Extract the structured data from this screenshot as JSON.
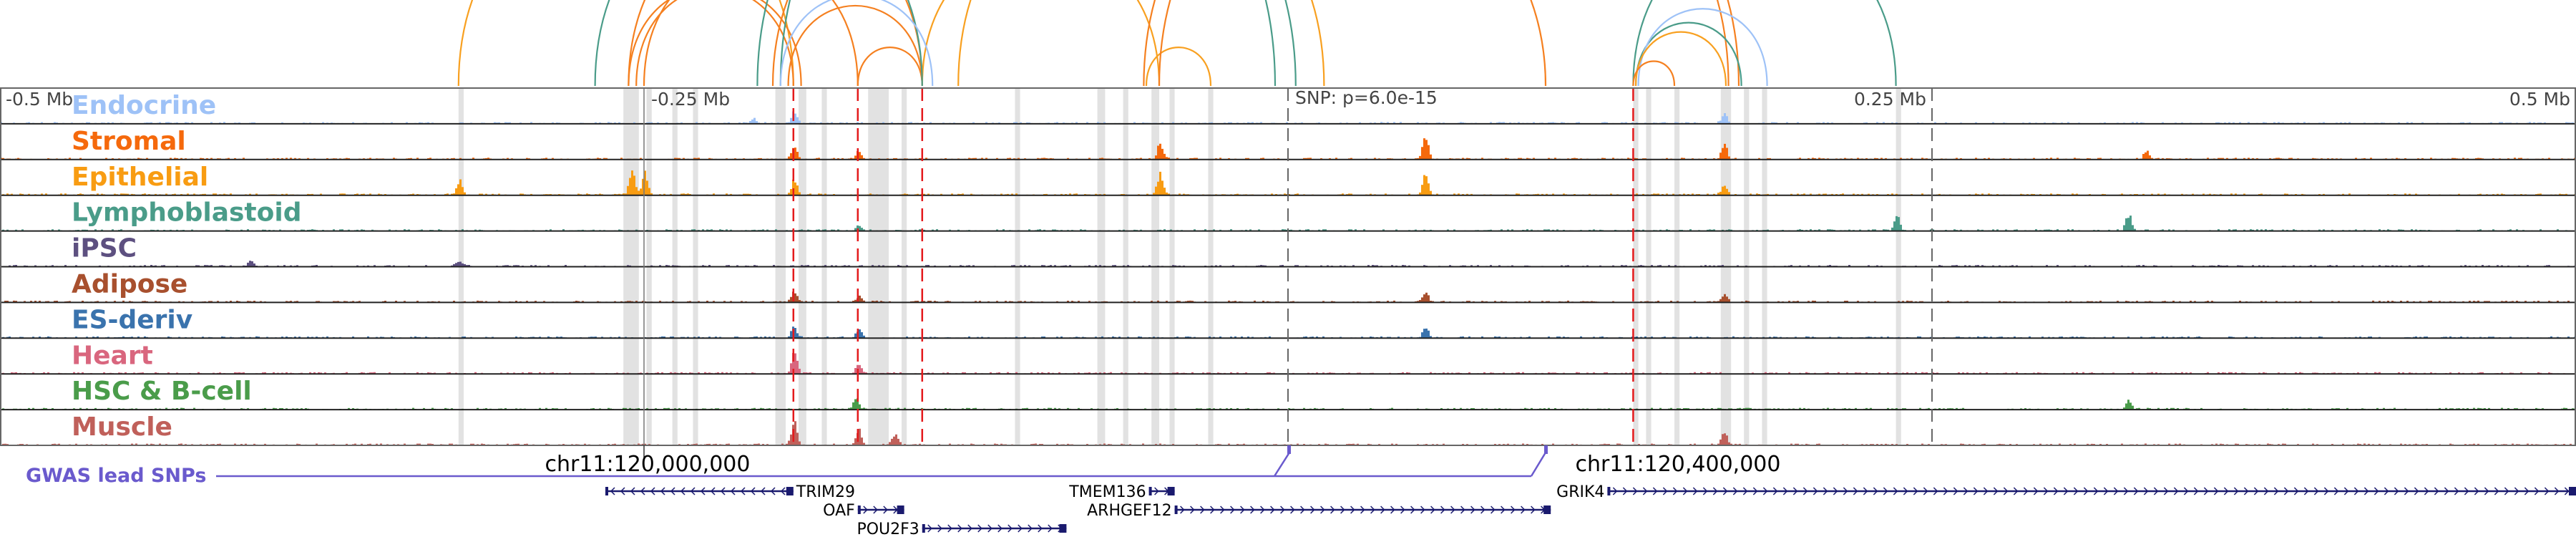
{
  "axis": {
    "ticks": [
      {
        "label": "-0.5 Mb",
        "mb": -0.5
      },
      {
        "label": "-0.25 Mb",
        "mb": -0.25
      },
      {
        "label": "0.25 Mb",
        "mb": 0.25
      },
      {
        "label": "0.5 Mb",
        "mb": 0.5
      }
    ],
    "snp_label": "SNP: p=6.0e-15"
  },
  "tracks": [
    {
      "name": "Endocrine",
      "color": "#9ec2f7",
      "peaks": [
        [
          -0.192,
          0.4
        ],
        [
          -0.208,
          0.2
        ],
        [
          0.169,
          0.35
        ]
      ]
    },
    {
      "name": "Stromal",
      "color": "#f5690c",
      "peaks": [
        [
          -0.192,
          0.5
        ],
        [
          -0.167,
          0.3
        ],
        [
          -0.05,
          0.6
        ],
        [
          0.053,
          0.9
        ],
        [
          0.169,
          0.6
        ],
        [
          0.333,
          0.3
        ]
      ]
    },
    {
      "name": "Epithelial",
      "color": "#f89c12",
      "peaks": [
        [
          -0.255,
          0.9
        ],
        [
          -0.25,
          0.85
        ],
        [
          -0.322,
          0.5
        ],
        [
          -0.192,
          0.6
        ],
        [
          -0.05,
          0.8
        ],
        [
          0.053,
          0.8
        ],
        [
          0.169,
          0.3
        ]
      ]
    },
    {
      "name": "Lymphoblastoid",
      "color": "#4a9c89",
      "peaks": [
        [
          0.236,
          0.5
        ],
        [
          0.326,
          0.6
        ],
        [
          -0.167,
          0.2
        ]
      ]
    },
    {
      "name": "iPSC",
      "color": "#5d5080",
      "peaks": [
        [
          -0.322,
          0.2
        ],
        [
          -0.403,
          0.2
        ]
      ]
    },
    {
      "name": "Adipose",
      "color": "#a8502e",
      "peaks": [
        [
          -0.192,
          0.4
        ],
        [
          -0.167,
          0.2
        ],
        [
          0.053,
          0.4
        ],
        [
          0.169,
          0.3
        ]
      ]
    },
    {
      "name": "ES-deriv",
      "color": "#3a73ad",
      "peaks": [
        [
          -0.192,
          0.4
        ],
        [
          -0.167,
          0.3
        ],
        [
          0.053,
          0.4
        ]
      ]
    },
    {
      "name": "Heart",
      "color": "#d9667e",
      "peaks": [
        [
          -0.192,
          0.8
        ],
        [
          -0.167,
          0.4
        ]
      ]
    },
    {
      "name": "HSC & B-cell",
      "color": "#4a9c4a",
      "peaks": [
        [
          -0.168,
          0.4
        ],
        [
          0.326,
          0.3
        ]
      ]
    },
    {
      "name": "Muscle",
      "color": "#c0605a",
      "peaks": [
        [
          -0.192,
          0.9
        ],
        [
          -0.167,
          0.6
        ],
        [
          -0.153,
          0.4
        ],
        [
          0.169,
          0.5
        ]
      ]
    }
  ],
  "highlights_mb": [
    [
      -0.322,
      -0.32
    ],
    [
      -0.258,
      -0.252
    ],
    [
      -0.249,
      -0.247
    ],
    [
      -0.239,
      -0.237
    ],
    [
      -0.231,
      -0.229
    ],
    [
      -0.199,
      -0.195
    ],
    [
      -0.19,
      -0.187
    ],
    [
      -0.181,
      -0.179
    ],
    [
      -0.163,
      -0.155
    ],
    [
      -0.15,
      -0.148
    ],
    [
      -0.106,
      -0.104
    ],
    [
      -0.074,
      -0.071
    ],
    [
      -0.064,
      -0.062
    ],
    [
      -0.053,
      -0.05
    ],
    [
      -0.046,
      -0.044
    ],
    [
      -0.031,
      -0.029
    ],
    [
      0.134,
      0.136
    ],
    [
      0.139,
      0.141
    ],
    [
      0.15,
      0.152
    ],
    [
      0.168,
      0.172
    ],
    [
      0.177,
      0.179
    ],
    [
      0.184,
      0.186
    ],
    [
      0.236,
      0.238
    ]
  ],
  "snp_lines_mb": [
    -0.192,
    -0.167,
    -0.142,
    0.134
  ],
  "marker_lines_mb": [
    0,
    0.25
  ],
  "arcs": [
    {
      "from": -0.322,
      "to": -0.192,
      "color": "#f8a020"
    },
    {
      "from": -0.256,
      "to": -0.192,
      "color": "#f58020"
    },
    {
      "from": -0.253,
      "to": -0.189,
      "color": "#f58020"
    },
    {
      "from": -0.25,
      "to": -0.167,
      "color": "#f58020"
    },
    {
      "from": -0.256,
      "to": -0.142,
      "color": "#f58020"
    },
    {
      "from": -0.194,
      "to": -0.142,
      "color": "#f58020"
    },
    {
      "from": -0.167,
      "to": -0.142,
      "color": "#f58020"
    },
    {
      "from": -0.142,
      "to": -0.05,
      "color": "#f8a020"
    },
    {
      "from": -0.128,
      "to": 0.014,
      "color": "#f8a020"
    },
    {
      "from": -0.055,
      "to": -0.03,
      "color": "#f8a020"
    },
    {
      "from": -0.05,
      "to": 0.175,
      "color": "#f58020"
    },
    {
      "from": -0.056,
      "to": 0.171,
      "color": "#f58020"
    },
    {
      "from": -0.2,
      "to": 0.1,
      "color": "#f58020"
    },
    {
      "from": -0.269,
      "to": -0.142,
      "color": "#4a9c89"
    },
    {
      "from": -0.206,
      "to": 0.003,
      "color": "#4a9c89"
    },
    {
      "from": -0.197,
      "to": -0.005,
      "color": "#4a9c89"
    },
    {
      "from": -0.197,
      "to": -0.138,
      "color": "#9ec2f7"
    },
    {
      "from": 0.134,
      "to": 0.236,
      "color": "#4a9c89"
    },
    {
      "from": 0.135,
      "to": 0.176,
      "color": "#4a9c89"
    },
    {
      "from": 0.136,
      "to": 0.186,
      "color": "#9ec2f7"
    },
    {
      "from": 0.135,
      "to": 0.17,
      "color": "#f8a020"
    },
    {
      "from": 0.134,
      "to": 0.15,
      "color": "#f58020"
    }
  ],
  "coords": {
    "left": "chr11:120,000,000",
    "right": "chr11:120,400,000"
  },
  "gwas": {
    "label": "GWAS lead SNPs",
    "color": "#6a5acd"
  },
  "genes": [
    {
      "name": "TRIM29",
      "strand": "-",
      "row": 0,
      "start_mb": -0.265,
      "end_mb": -0.192,
      "label_side": "right"
    },
    {
      "name": "OAF",
      "strand": "+",
      "row": 1,
      "start_mb": -0.167,
      "end_mb": -0.149,
      "label_side": "left"
    },
    {
      "name": "POU2F3",
      "strand": "+",
      "row": 2,
      "start_mb": -0.142,
      "end_mb": -0.086,
      "label_side": "left"
    },
    {
      "name": "TMEM136",
      "strand": "+",
      "row": 0,
      "start_mb": -0.054,
      "end_mb": -0.044,
      "label_side": "left"
    },
    {
      "name": "ARHGEF12",
      "strand": "+",
      "row": 1,
      "start_mb": -0.044,
      "end_mb": 0.102,
      "label_side": "left"
    },
    {
      "name": "GRIK4",
      "strand": "+",
      "row": 0,
      "start_mb": 0.124,
      "end_mb": 0.5,
      "label_side": "left"
    }
  ]
}
